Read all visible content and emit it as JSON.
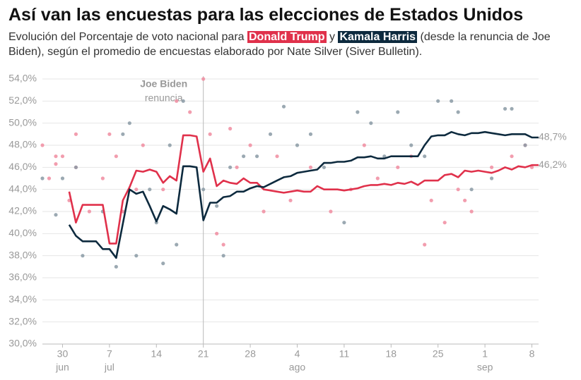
{
  "chart_data": {
    "type": "line",
    "title": "Así van las encuestas para las elecciones de Estados Unidos",
    "subtitle": [
      "Evolución del Porcentaje de voto nacional para ",
      " y ",
      " (desde la renuncia de Joe Biden), según el promedio de encuestas elaborado por Nate Silver (Siver Bulletin)."
    ],
    "x": [
      "07-01",
      "07-02",
      "07-03",
      "07-04",
      "07-05",
      "07-06",
      "07-07",
      "07-08",
      "07-09",
      "07-10",
      "07-11",
      "07-12",
      "07-13",
      "07-14",
      "07-15",
      "07-16",
      "07-17",
      "07-18",
      "07-19",
      "07-20",
      "07-21",
      "07-22",
      "07-23",
      "07-24",
      "07-25",
      "07-26",
      "07-27",
      "07-28",
      "07-29",
      "07-30",
      "07-31",
      "08-01",
      "08-02",
      "08-03",
      "08-04",
      "08-05",
      "08-06",
      "08-07",
      "08-08",
      "08-09",
      "08-10",
      "08-11",
      "08-12",
      "08-13",
      "08-14",
      "08-15",
      "08-16",
      "08-17",
      "08-18",
      "08-19",
      "08-20",
      "08-21",
      "08-22",
      "08-23",
      "08-24",
      "08-25",
      "08-26",
      "08-27",
      "08-28",
      "08-29",
      "08-30",
      "08-31",
      "09-01",
      "09-02",
      "09-03",
      "09-04",
      "09-05",
      "09-06",
      "09-07",
      "09-08",
      "09-09"
    ],
    "series": [
      {
        "name": "Donald Trump",
        "color": "#e0314b",
        "poll_color": "#f08ca0",
        "end_label": "46,2%",
        "values": [
          43.8,
          41.0,
          42.6,
          42.6,
          42.6,
          42.6,
          39.1,
          39.1,
          43.0,
          44.2,
          45.7,
          45.6,
          45.8,
          45.6,
          44.6,
          45.2,
          44.8,
          48.9,
          48.9,
          48.8,
          45.6,
          46.8,
          44.3,
          44.8,
          44.6,
          44.5,
          45.0,
          44.6,
          44.6,
          44.0,
          43.9,
          43.8,
          43.7,
          43.8,
          43.9,
          43.8,
          43.8,
          44.3,
          44.0,
          44.0,
          44.0,
          43.9,
          44.0,
          44.1,
          44.3,
          44.4,
          44.4,
          44.5,
          44.4,
          44.6,
          44.5,
          44.7,
          44.4,
          44.8,
          44.8,
          44.8,
          45.3,
          45.4,
          45.1,
          45.7,
          45.6,
          45.7,
          45.6,
          45.5,
          45.7,
          46.0,
          45.8,
          46.1,
          46.0,
          46.2,
          46.2
        ],
        "poll_x": [
          "06-27",
          "06-28",
          "06-29",
          "06-29",
          "06-30",
          "07-01",
          "07-02",
          "07-02",
          "07-04",
          "07-06",
          "07-07",
          "07-08",
          "07-09",
          "07-11",
          "07-12",
          "07-15",
          "07-17",
          "07-19",
          "07-21",
          "07-22",
          "07-23",
          "07-24",
          "07-25",
          "07-26",
          "07-28",
          "07-30",
          "08-01",
          "08-03",
          "08-06",
          "08-09",
          "08-12",
          "08-14",
          "08-16",
          "08-19",
          "08-21",
          "08-23",
          "08-24",
          "08-26",
          "08-28",
          "08-29",
          "08-30",
          "09-02",
          "09-05",
          "09-07",
          "09-08"
        ],
        "poll_values": [
          48,
          45,
          46.3,
          47,
          47,
          43,
          46,
          49,
          42,
          45,
          49,
          47,
          42,
          44,
          48,
          44,
          52,
          51,
          54,
          49,
          40,
          39,
          49.5,
          46,
          48,
          42,
          47,
          43,
          46,
          42,
          44,
          48,
          45,
          46,
          47,
          39,
          43,
          41,
          44,
          43,
          42,
          46,
          47,
          48,
          46
        ]
      },
      {
        "name": "Kamala Harris",
        "color": "#0d2a3e",
        "poll_color": "#8a9aa5",
        "end_label": "48,7%",
        "values": [
          40.8,
          39.8,
          39.3,
          39.3,
          39.3,
          38.6,
          38.6,
          37.8,
          40.9,
          44.0,
          43.6,
          43.8,
          42.5,
          41.1,
          42.5,
          42.2,
          41.8,
          46.1,
          46.1,
          46.0,
          41.2,
          42.8,
          42.8,
          43.3,
          43.4,
          43.8,
          43.8,
          44.1,
          44.3,
          44.2,
          44.5,
          44.8,
          45.1,
          45.2,
          45.5,
          45.6,
          45.7,
          45.8,
          46.4,
          46.4,
          46.5,
          46.5,
          46.6,
          46.9,
          46.9,
          47.0,
          46.8,
          46.8,
          47.0,
          47.0,
          47.0,
          47.0,
          47.0,
          48.0,
          48.8,
          48.9,
          48.9,
          49.2,
          49.0,
          48.9,
          49.1,
          49.1,
          49.2,
          49.1,
          49.0,
          48.9,
          49.0,
          49.0,
          49.0,
          48.7,
          48.7
        ],
        "poll_x": [
          "06-27",
          "06-29",
          "06-30",
          "07-02",
          "07-03",
          "07-06",
          "07-08",
          "07-09",
          "07-10",
          "07-11",
          "07-13",
          "07-14",
          "07-15",
          "07-16",
          "07-17",
          "07-18",
          "07-21",
          "07-23",
          "07-24",
          "07-25",
          "07-27",
          "07-29",
          "07-31",
          "08-02",
          "08-04",
          "08-06",
          "08-08",
          "08-11",
          "08-13",
          "08-15",
          "08-17",
          "08-19",
          "08-21",
          "08-23",
          "08-25",
          "08-27",
          "08-28",
          "08-30",
          "09-02",
          "09-04",
          "09-05",
          "09-07"
        ],
        "poll_values": [
          45,
          41.7,
          45,
          46,
          38,
          42,
          37,
          49,
          50,
          38,
          44,
          41,
          37.3,
          48,
          39,
          52,
          44,
          42.5,
          38,
          46,
          47,
          47,
          49,
          51.5,
          48,
          49,
          46,
          41,
          51,
          50,
          47,
          51,
          48,
          47,
          52,
          52,
          51,
          44,
          45,
          51.3,
          51.3,
          48
        ]
      }
    ],
    "annotation": {
      "x": "07-21",
      "title": "Joe Biden",
      "text": "renuncia"
    },
    "xlim": [
      "06-27",
      "09-09"
    ],
    "xticks": [
      {
        "value": "06-30",
        "label": "30"
      },
      {
        "value": "07-07",
        "label": "7"
      },
      {
        "value": "07-14",
        "label": "14"
      },
      {
        "value": "07-21",
        "label": "21"
      },
      {
        "value": "07-28",
        "label": "28"
      },
      {
        "value": "08-04",
        "label": "4"
      },
      {
        "value": "08-11",
        "label": "11"
      },
      {
        "value": "08-18",
        "label": "18"
      },
      {
        "value": "08-25",
        "label": "25"
      },
      {
        "value": "09-01",
        "label": "1"
      },
      {
        "value": "09-08",
        "label": "8"
      }
    ],
    "months": [
      {
        "value": "06-30",
        "label": "jun"
      },
      {
        "value": "07-07",
        "label": "jul"
      },
      {
        "value": "08-04",
        "label": "ago"
      },
      {
        "value": "09-01",
        "label": "sep"
      }
    ],
    "ylim": [
      30,
      54
    ],
    "yticks": [
      {
        "value": 30,
        "label": "30,0%"
      },
      {
        "value": 32,
        "label": "32,0%"
      },
      {
        "value": 34,
        "label": "34,0%"
      },
      {
        "value": 36,
        "label": "36,0%"
      },
      {
        "value": 38,
        "label": "38,0%"
      },
      {
        "value": 40,
        "label": "40,0%"
      },
      {
        "value": 42,
        "label": "42,0%"
      },
      {
        "value": 44,
        "label": "44,0%"
      },
      {
        "value": 46,
        "label": "46,0%"
      },
      {
        "value": 48,
        "label": "48,0%"
      },
      {
        "value": 50,
        "label": "50,0%"
      },
      {
        "value": 52,
        "label": "52,0%"
      },
      {
        "value": 54,
        "label": "54,0%"
      }
    ],
    "grid": true
  }
}
